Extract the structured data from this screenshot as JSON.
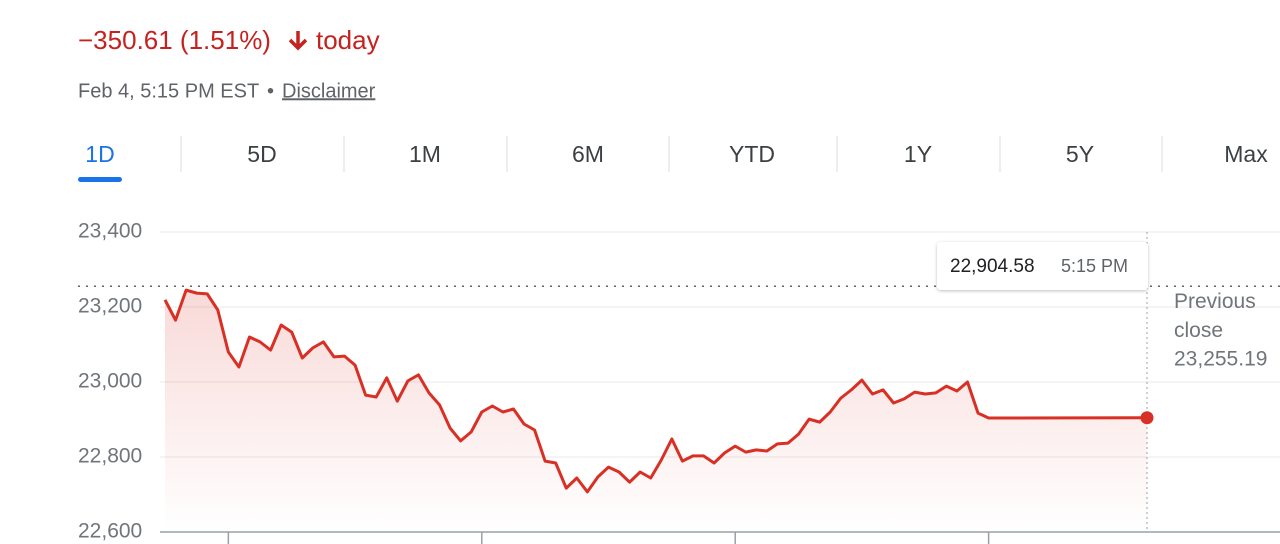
{
  "header": {
    "change": "−350.61 (1.51%)",
    "period": "today",
    "timestamp": "Feb 4, 5:15 PM EST",
    "disclaimer": "Disclaimer"
  },
  "tabs": [
    "1D",
    "5D",
    "1M",
    "6M",
    "YTD",
    "1Y",
    "5Y",
    "Max"
  ],
  "active_tab": 0,
  "chart_data": {
    "type": "line",
    "color": "#d93025",
    "grid": true,
    "x": [
      570,
      575,
      580,
      585,
      590,
      595,
      600,
      605,
      610,
      615,
      620,
      625,
      630,
      635,
      640,
      645,
      650,
      655,
      660,
      665,
      670,
      675,
      680,
      685,
      690,
      695,
      700,
      705,
      710,
      715,
      720,
      725,
      730,
      735,
      740,
      745,
      750,
      755,
      760,
      765,
      770,
      775,
      780,
      785,
      790,
      795,
      800,
      805,
      810,
      815,
      820,
      825,
      830,
      835,
      840,
      845,
      850,
      855,
      860,
      865,
      870,
      875,
      880,
      885,
      890,
      895,
      900,
      905,
      910,
      915,
      920,
      925,
      930,
      935,
      940,
      945,
      950,
      955,
      960,
      1035
    ],
    "values": [
      23219,
      23165,
      23245,
      23237,
      23235,
      23192,
      23080,
      23040,
      23120,
      23107,
      23085,
      23152,
      23133,
      23064,
      23091,
      23107,
      23067,
      23069,
      23045,
      22965,
      22960,
      23011,
      22949,
      23003,
      23019,
      22971,
      22939,
      22877,
      22843,
      22867,
      22920,
      22936,
      22920,
      22928,
      22888,
      22872,
      22789,
      22784,
      22717,
      22744,
      22707,
      22747,
      22773,
      22760,
      22733,
      22760,
      22744,
      22792,
      22848,
      22789,
      22803,
      22803,
      22784,
      22811,
      22829,
      22813,
      22819,
      22816,
      22835,
      22837,
      22861,
      22901,
      22893,
      22920,
      22957,
      22979,
      23005,
      22968,
      22979,
      22944,
      22955,
      22973,
      22968,
      22971,
      22989,
      22976,
      23000,
      22917,
      22904,
      22904.58
    ],
    "xlim": [
      570,
      1035
    ],
    "xticks": [
      600,
      720,
      840,
      960
    ],
    "ylim": [
      22600,
      23400
    ],
    "yticks": [
      {
        "value": 22600,
        "label": "22,600"
      },
      {
        "value": 22800,
        "label": "22,800"
      },
      {
        "value": 23000,
        "label": "23,000"
      },
      {
        "value": 23200,
        "label": "23,200"
      },
      {
        "value": 23400,
        "label": "23,400"
      }
    ],
    "previous_close": {
      "value": 23255.19,
      "label": "23,255.19",
      "title": "Previous close"
    },
    "tooltip": {
      "value": 22904.58,
      "label": "22,904.58",
      "time": "5:15 PM"
    }
  }
}
